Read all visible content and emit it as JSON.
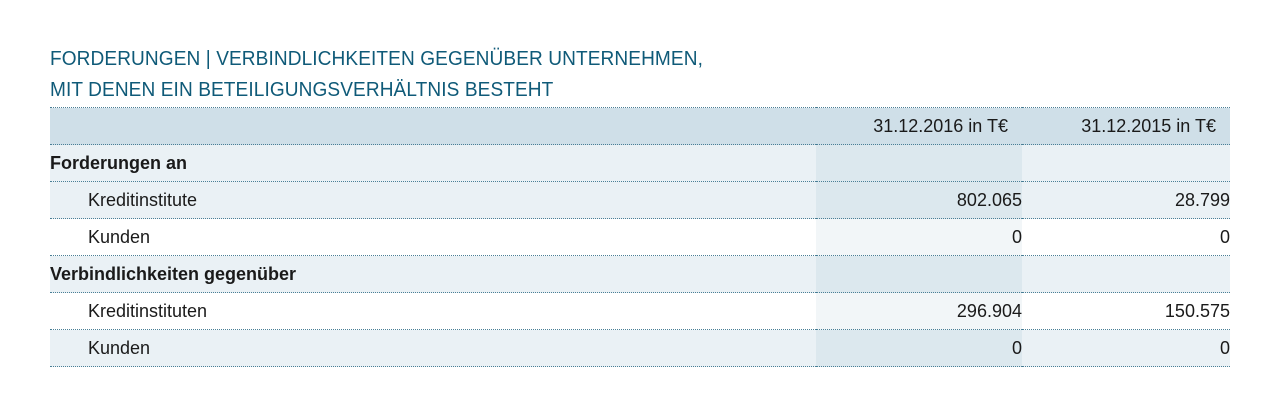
{
  "title": {
    "line1": "FORDERUNGEN | VERBINDLICHKEITEN GEGENÜBER UNTERNEHMEN,",
    "line2": "MIT DENEN EIN BETEILIGUNGSVERHÄLTNIS BESTEHT"
  },
  "header": {
    "label": "",
    "col1": "31.12.2016 in T€",
    "col2": "31.12.2015 in T€"
  },
  "rows": [
    {
      "label": "Forderungen an",
      "v2016": "",
      "v2015": ""
    },
    {
      "label": "Kreditinstitute",
      "v2016": "802.065",
      "v2015": "28.799"
    },
    {
      "label": "Kunden",
      "v2016": "0",
      "v2015": "0"
    },
    {
      "label": "Verbindlichkeiten gegenüber",
      "v2016": "",
      "v2015": ""
    },
    {
      "label": "Kreditinstituten",
      "v2016": "296.904",
      "v2015": "150.575"
    },
    {
      "label": "Kunden",
      "v2016": "0",
      "v2015": "0"
    }
  ],
  "colors": {
    "title": "#0f5a78",
    "header_bg": "#cfdfe8",
    "row_tint": "#eaf1f5",
    "highlight_col": "#dce8ee",
    "rule": "#4a7f96"
  }
}
